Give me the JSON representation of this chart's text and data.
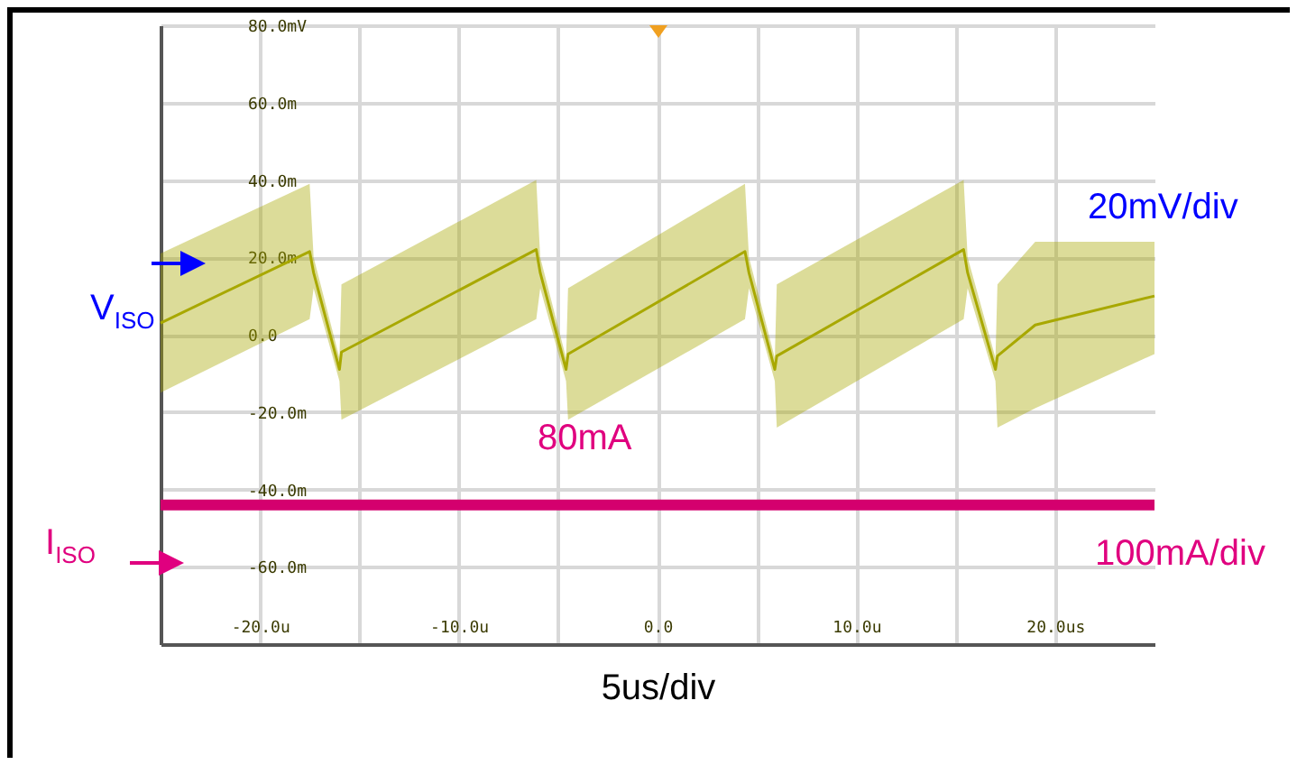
{
  "chart_data": {
    "type": "line",
    "xlabel": "5us/div",
    "xlim": [
      -25,
      25
    ],
    "ylim": [
      -80,
      80
    ],
    "xticks": [
      {
        "value": -20,
        "label": "-20.0u"
      },
      {
        "value": -15,
        "label": null
      },
      {
        "value": -10,
        "label": "-10.0u"
      },
      {
        "value": -5,
        "label": null
      },
      {
        "value": 0,
        "label": "0.0"
      },
      {
        "value": 5,
        "label": null
      },
      {
        "value": 10,
        "label": "10.0u"
      },
      {
        "value": 15,
        "label": null
      },
      {
        "value": 20,
        "label": "20.0us"
      }
    ],
    "yticks": [
      {
        "value": -60,
        "label": "-60.0m"
      },
      {
        "value": -40,
        "label": "-40.0m"
      },
      {
        "value": -20,
        "label": "-20.0m"
      },
      {
        "value": 0,
        "label": "0.0"
      },
      {
        "value": 20,
        "label": "20.0m"
      },
      {
        "value": 40,
        "label": "40.0m"
      },
      {
        "value": 60,
        "label": "60.0m"
      },
      {
        "value": 80,
        "label": "80.0mV"
      }
    ],
    "grid": true,
    "series": [
      {
        "name": "V$_{ISO}$",
        "color": "#a8a800",
        "x": [
          -25,
          -17.5,
          -17.3,
          -16.0,
          -15.9,
          -6.1,
          -5.9,
          -4.6,
          -4.5,
          4.4,
          4.6,
          5.9,
          6.0,
          15.4,
          15.6,
          17.0,
          17.1,
          19,
          25
        ],
        "values": [
          3,
          21.5,
          16,
          -9,
          -4.5,
          22,
          16,
          -9,
          -5,
          21.5,
          16,
          -9,
          -5.5,
          22,
          16,
          -9,
          -5.5,
          2.5,
          10
        ],
        "lower": [
          -15,
          4,
          12,
          -12,
          -22,
          4,
          12,
          -12,
          -22,
          4,
          12,
          -12,
          -24,
          4,
          12,
          -12,
          -24,
          -19,
          -5
        ],
        "upper": [
          21,
          39,
          20,
          -6,
          13,
          40,
          20,
          -6,
          12,
          39,
          20,
          -6,
          13,
          40,
          20,
          -6,
          13,
          24,
          24
        ]
      },
      {
        "name": "I$_{ISO}$",
        "color": "#d4006e",
        "x": [
          -25,
          25
        ],
        "values": [
          -44,
          -44
        ]
      }
    ],
    "annotations": [
      "80mA",
      "20mV/div",
      "100mA/div"
    ]
  }
}
